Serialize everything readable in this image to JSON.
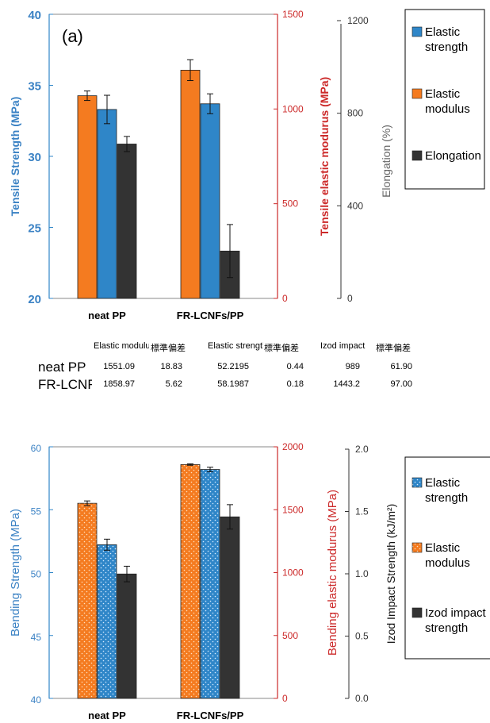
{
  "colors": {
    "modulus": "#f47b20",
    "strength": "#2f86c8",
    "elong": "#333333",
    "axis_blue": "#3b82c4",
    "axis_red": "#cc2a2a",
    "axis_gray": "#555555"
  },
  "chart_data": [
    {
      "type": "bar",
      "panel_label": "(a)",
      "categories": [
        "neat PP",
        "FR-LCNFs/PP"
      ],
      "ylabel_left": "Tensile Strength (MPa)",
      "ylabel_right1": "Tensile elastic modurus (MPa)",
      "ylabel_right2": "Elongation (%)",
      "yticks_left": [
        "20",
        "25",
        "30",
        "35",
        "40"
      ],
      "yticks_right1": [
        "0",
        "500",
        "1000",
        "1500"
      ],
      "yticks_right2": [
        "0",
        "400",
        "800",
        "1200"
      ],
      "ylim_left": [
        20,
        40
      ],
      "ylim_right1": [
        0,
        1500
      ],
      "ylim_right2": [
        0,
        1500
      ],
      "series": [
        {
          "name": "Elastic modulus",
          "axis": "right1",
          "values": [
            1070,
            1205
          ],
          "errors": [
            25,
            55
          ]
        },
        {
          "name": "Elastic strength",
          "axis": "left",
          "values": [
            33.3,
            33.7
          ],
          "errors": [
            1.0,
            0.7
          ]
        },
        {
          "name": "Elongation",
          "axis": "right2",
          "values": [
            815,
            250
          ],
          "errors": [
            40,
            140
          ]
        }
      ],
      "legend": [
        {
          "line1": "Elastic",
          "line2": "strength",
          "color": "#2f86c8"
        },
        {
          "line1": "Elastic",
          "line2": "modulus",
          "color": "#f47b20"
        },
        {
          "line1": "Elongation",
          "line2": "",
          "color": "#333333"
        }
      ]
    },
    {
      "type": "bar",
      "categories": [
        "neat PP",
        "FR-LCNFs/PP"
      ],
      "ylabel_left": "Bending Strength (MPa)",
      "ylabel_right1": "Bending elastic modurus (MPa)",
      "ylabel_right2": "Izod Impact Strength (kJ/m²)",
      "yticks_left": [
        "40",
        "45",
        "50",
        "55",
        "60"
      ],
      "yticks_right1": [
        "0",
        "500",
        "1000",
        "1500",
        "2000"
      ],
      "yticks_right2": [
        "0.0",
        "0.5",
        "1.0",
        "1.5",
        "2.0"
      ],
      "ylim_left": [
        40,
        60
      ],
      "ylim_right1": [
        0,
        2000
      ],
      "ylim_right2": [
        0,
        2000
      ],
      "series": [
        {
          "name": "Elastic modulus",
          "axis": "right1",
          "values": [
            1551.09,
            1858.97
          ],
          "errors": [
            18.83,
            5.62
          ]
        },
        {
          "name": "Elastic strength",
          "axis": "left",
          "values": [
            52.2195,
            58.1987
          ],
          "errors": [
            0.44,
            0.18
          ]
        },
        {
          "name": "Izod impact strength",
          "axis": "right2",
          "values": [
            989,
            1443.2
          ],
          "errors": [
            61.9,
            97.0
          ]
        }
      ],
      "legend": [
        {
          "line1": "Elastic",
          "line2": "strength",
          "color": "#2f86c8"
        },
        {
          "line1": "Elastic",
          "line2": "modulus",
          "color": "#f47b20"
        },
        {
          "line1": "Izod impact",
          "line2": "strength",
          "color": "#333333"
        }
      ]
    }
  ],
  "table": {
    "headers": [
      "Elastic modulus",
      "標準偏差",
      "Elastic strength",
      "標準偏差",
      "Izod impact",
      "標準偏差"
    ],
    "rows": [
      {
        "label": "neat PP",
        "cells": [
          "1551.09",
          "18.83",
          "52.2195",
          "0.44",
          "989",
          "61.90"
        ]
      },
      {
        "label": "FR-LCNFs/PP",
        "cells": [
          "1858.97",
          "5.62",
          "58.1987",
          "0.18",
          "1443.2",
          "97.00"
        ]
      }
    ]
  }
}
